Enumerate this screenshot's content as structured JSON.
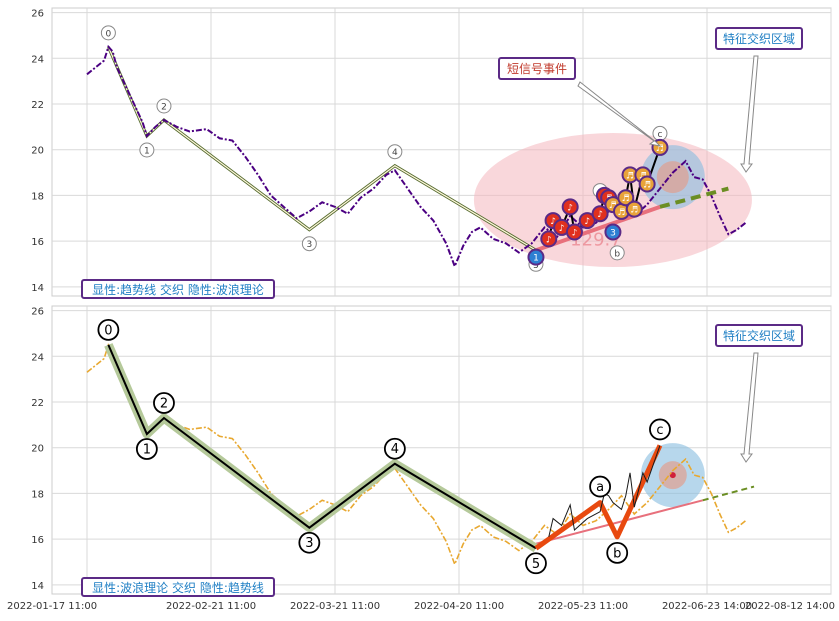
{
  "chart_data": [
    {
      "type": "line",
      "ylim": [
        13.6,
        26.2
      ],
      "yticks": [
        14,
        16,
        18,
        20,
        22,
        24,
        26
      ],
      "grid": true,
      "colors": {
        "price": "#4b0082",
        "wave": "#fff8dc",
        "wave_outline": "#556b2f",
        "ellipse": "#f4b6bd",
        "circle": "#87bde0",
        "dash": "#6b8e23",
        "trend": "#e8707c",
        "badge_border": "#5b2a86",
        "badge_text": "#1f7fc4",
        "event_box_text": "#c0392b"
      },
      "price_series": [
        {
          "x": 0,
          "y": 23.3
        },
        {
          "x": 2,
          "y": 23.6
        },
        {
          "x": 4,
          "y": 23.9
        },
        {
          "x": 5,
          "y": 24.5
        },
        {
          "x": 6,
          "y": 24.3
        },
        {
          "x": 7,
          "y": 23.6
        },
        {
          "x": 9,
          "y": 22.8
        },
        {
          "x": 11,
          "y": 22.0
        },
        {
          "x": 13,
          "y": 21.2
        },
        {
          "x": 14,
          "y": 20.6
        },
        {
          "x": 16,
          "y": 21.0
        },
        {
          "x": 18,
          "y": 21.3
        },
        {
          "x": 21,
          "y": 21.0
        },
        {
          "x": 24,
          "y": 20.8
        },
        {
          "x": 28,
          "y": 20.9
        },
        {
          "x": 31,
          "y": 20.5
        },
        {
          "x": 34,
          "y": 20.4
        },
        {
          "x": 37,
          "y": 19.7
        },
        {
          "x": 40,
          "y": 18.9
        },
        {
          "x": 43,
          "y": 18.0
        },
        {
          "x": 46,
          "y": 17.5
        },
        {
          "x": 49,
          "y": 17.0
        },
        {
          "x": 52,
          "y": 17.3
        },
        {
          "x": 55,
          "y": 17.7
        },
        {
          "x": 58,
          "y": 17.5
        },
        {
          "x": 61,
          "y": 17.2
        },
        {
          "x": 64,
          "y": 17.9
        },
        {
          "x": 67,
          "y": 18.3
        },
        {
          "x": 70,
          "y": 18.9
        },
        {
          "x": 72,
          "y": 19.1
        },
        {
          "x": 75,
          "y": 18.3
        },
        {
          "x": 78,
          "y": 17.5
        },
        {
          "x": 81,
          "y": 16.9
        },
        {
          "x": 84,
          "y": 15.9
        },
        {
          "x": 86,
          "y": 14.9
        },
        {
          "x": 88,
          "y": 15.8
        },
        {
          "x": 90,
          "y": 16.4
        },
        {
          "x": 92,
          "y": 16.6
        },
        {
          "x": 95,
          "y": 16.1
        },
        {
          "x": 98,
          "y": 15.9
        },
        {
          "x": 101,
          "y": 15.5
        },
        {
          "x": 104,
          "y": 15.9
        },
        {
          "x": 107,
          "y": 16.6
        },
        {
          "x": 110,
          "y": 16.2
        },
        {
          "x": 113,
          "y": 17.1
        },
        {
          "x": 116,
          "y": 16.6
        },
        {
          "x": 119,
          "y": 16.8
        },
        {
          "x": 122,
          "y": 17.3
        },
        {
          "x": 125,
          "y": 17.9
        },
        {
          "x": 128,
          "y": 17.1
        },
        {
          "x": 131,
          "y": 17.6
        },
        {
          "x": 134,
          "y": 18.3
        },
        {
          "x": 137,
          "y": 19.0
        },
        {
          "x": 140,
          "y": 19.5
        },
        {
          "x": 142,
          "y": 18.8
        },
        {
          "x": 144,
          "y": 18.7
        },
        {
          "x": 146,
          "y": 18.0
        },
        {
          "x": 148,
          "y": 17.1
        },
        {
          "x": 150,
          "y": 16.3
        },
        {
          "x": 152,
          "y": 16.5
        },
        {
          "x": 154,
          "y": 16.8
        }
      ],
      "wave_points": [
        {
          "label": "0",
          "x": 5,
          "y": 24.5
        },
        {
          "label": "1",
          "x": 14,
          "y": 20.6
        },
        {
          "label": "2",
          "x": 18,
          "y": 21.3
        },
        {
          "label": "3",
          "x": 52,
          "y": 16.5
        },
        {
          "label": "4",
          "x": 72,
          "y": 19.3
        },
        {
          "label": "5",
          "x": 105,
          "y": 15.6
        }
      ],
      "abc_points": [
        {
          "label": "a",
          "x": 120,
          "y": 17.6
        },
        {
          "label": "b",
          "x": 124,
          "y": 16.1
        },
        {
          "label": "c",
          "x": 134,
          "y": 20.1
        }
      ],
      "signal_markers": [
        {
          "label": "1",
          "x": 105,
          "y": 15.3,
          "color": "#2d7fd3"
        },
        {
          "label": "♪",
          "x": 108,
          "y": 16.1,
          "color": "#e0301e"
        },
        {
          "label": "♪",
          "x": 109,
          "y": 16.9,
          "color": "#e0301e"
        },
        {
          "label": "♪",
          "x": 111,
          "y": 16.6,
          "color": "#e0301e"
        },
        {
          "label": "♪",
          "x": 113,
          "y": 17.5,
          "color": "#e0301e"
        },
        {
          "label": "♪",
          "x": 114,
          "y": 16.4,
          "color": "#e0301e"
        },
        {
          "label": "♪",
          "x": 117,
          "y": 16.9,
          "color": "#e0301e"
        },
        {
          "label": "♪",
          "x": 120,
          "y": 17.2,
          "color": "#e0301e"
        },
        {
          "label": "♬",
          "x": 121,
          "y": 18.0,
          "color": "#e0301e"
        },
        {
          "label": "♬",
          "x": 122,
          "y": 17.9,
          "color": "#e0301e"
        },
        {
          "label": "♬",
          "x": 123,
          "y": 17.6,
          "color": "#e8a33a"
        },
        {
          "label": "3",
          "x": 123,
          "y": 16.4,
          "color": "#2d7fd3"
        },
        {
          "label": "♬",
          "x": 125,
          "y": 17.3,
          "color": "#e8a33a"
        },
        {
          "label": "♬",
          "x": 126,
          "y": 17.9,
          "color": "#e8a33a"
        },
        {
          "label": "♬",
          "x": 127,
          "y": 18.9,
          "color": "#e8a33a"
        },
        {
          "label": "♬",
          "x": 128,
          "y": 17.4,
          "color": "#e8a33a"
        },
        {
          "label": "♬",
          "x": 130,
          "y": 18.9,
          "color": "#e8a33a"
        },
        {
          "label": "♬",
          "x": 131,
          "y": 18.5,
          "color": "#e8a33a"
        },
        {
          "label": "♬",
          "x": 134,
          "y": 20.1,
          "color": "#e8a33a"
        }
      ],
      "texts": {
        "event_label": "短信号事件",
        "zone_label": "特征交织区域",
        "badge": "显性:趋势线 交织 隐性:波浪理论",
        "overlay_value": "129.7"
      }
    },
    {
      "type": "line",
      "ylim": [
        13.6,
        26.2
      ],
      "yticks": [
        14,
        16,
        18,
        20,
        22,
        24,
        26
      ],
      "grid": true,
      "colors": {
        "price": "#e8a830",
        "wave": "#000000",
        "wave_glow": "#b5c99a",
        "abc": "#e8490f",
        "circle": "#87bde0",
        "dash": "#6b8e23",
        "trend": "#e8707c",
        "badge_border": "#5b2a86",
        "badge_text": "#1f7fc4"
      },
      "texts": {
        "zone_label": "特征交织区域",
        "badge": "显性:波浪理论 交织 隐性:趋势线"
      }
    }
  ],
  "x_axis": {
    "tick_labels": [
      "2022-01-17 11:00",
      "2022-02-21 11:00",
      "2022-03-21 11:00",
      "2022-04-20 11:00",
      "2022-05-23 11:00",
      "2022-06-23 14:00",
      "2022-08-12 14:00"
    ],
    "tick_positions": [
      0,
      29,
      58,
      87,
      116,
      145,
      174
    ]
  }
}
